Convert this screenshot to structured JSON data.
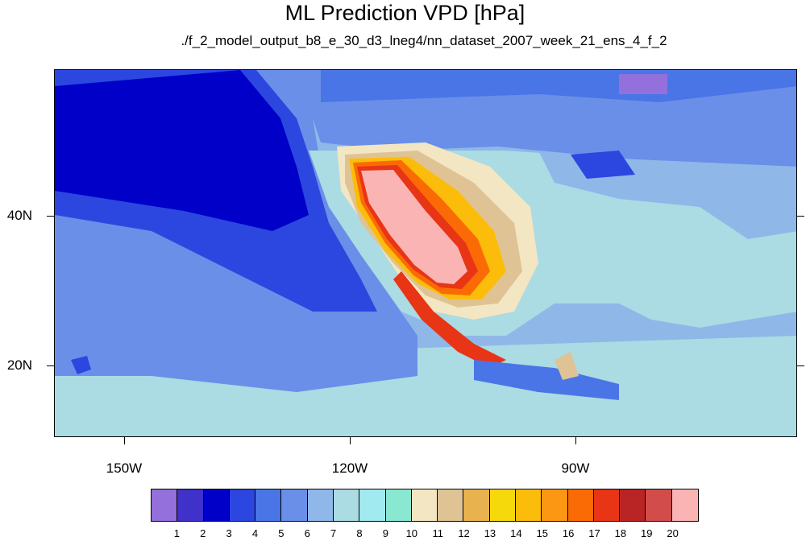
{
  "title": "ML Prediction VPD [hPa]",
  "subtitle": "./f_2_model_output_b8_e_30_d3_lneg4/nn_dataset_2007_week_21_ens_4_f_2",
  "axes": {
    "y_labels": [
      "40N",
      "20N"
    ],
    "x_labels": [
      "150W",
      "120W",
      "90W"
    ]
  },
  "colorbar": {
    "labels": [
      "1",
      "2",
      "3",
      "4",
      "5",
      "6",
      "7",
      "8",
      "9",
      "10",
      "11",
      "12",
      "13",
      "14",
      "15",
      "16",
      "17",
      "18",
      "19",
      "20"
    ],
    "colors": [
      "#9370db",
      "#3f31c9",
      "#0000c8",
      "#2b47e0",
      "#4a75e6",
      "#6a8fe8",
      "#8fb7e8",
      "#abdbe3",
      "#a0eaf0",
      "#8ae8d2",
      "#f3e6c2",
      "#e0c394",
      "#e8b34f",
      "#f5d90a",
      "#fbbd0a",
      "#fb9712",
      "#fb6b05",
      "#e83516",
      "#b92524",
      "#d24c4c",
      "#fbb4b4"
    ]
  },
  "map": {
    "region": "North America / Eastern Pacific",
    "colors": {
      "ocean_deep": "#2a3fd6",
      "ocean_mid": "#4a75e6",
      "ocean_light": "#6a8fe8",
      "tropical": "#8fb7e8",
      "land_light": "#abdbe3",
      "hot_core": "#fbb4b4"
    }
  }
}
